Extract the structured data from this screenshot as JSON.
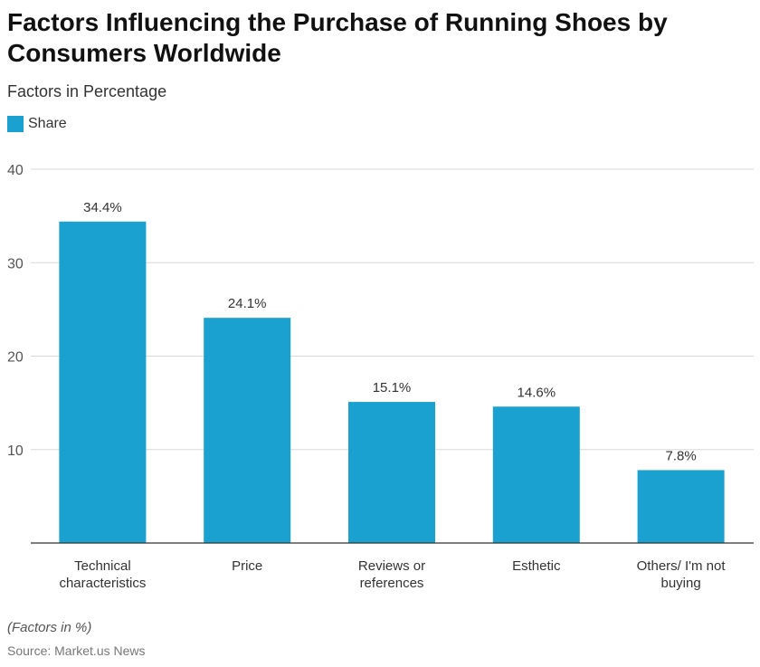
{
  "title": "Factors Influencing the Purchase of Running Shoes by Consumers Worldwide",
  "subtitle": "Factors in Percentage",
  "footnote": "(Factors in %)",
  "source": "Source: Market.us News",
  "chart_data": {
    "type": "bar",
    "categories": [
      [
        "Technical",
        "characteristics"
      ],
      [
        "Price"
      ],
      [
        "Reviews or",
        "references"
      ],
      [
        "Esthetic"
      ],
      [
        "Others/ I'm not",
        "buying"
      ]
    ],
    "series": [
      {
        "name": "Share",
        "values": [
          34.4,
          24.1,
          15.1,
          14.6,
          7.8
        ],
        "color": "#1ba1cf"
      }
    ],
    "data_labels": [
      "34.4%",
      "24.1%",
      "15.1%",
      "14.6%",
      "7.8%"
    ],
    "yticks": [
      10,
      20,
      30,
      40
    ],
    "ylim": [
      0,
      40
    ],
    "grid": true,
    "legend": "top-left"
  }
}
